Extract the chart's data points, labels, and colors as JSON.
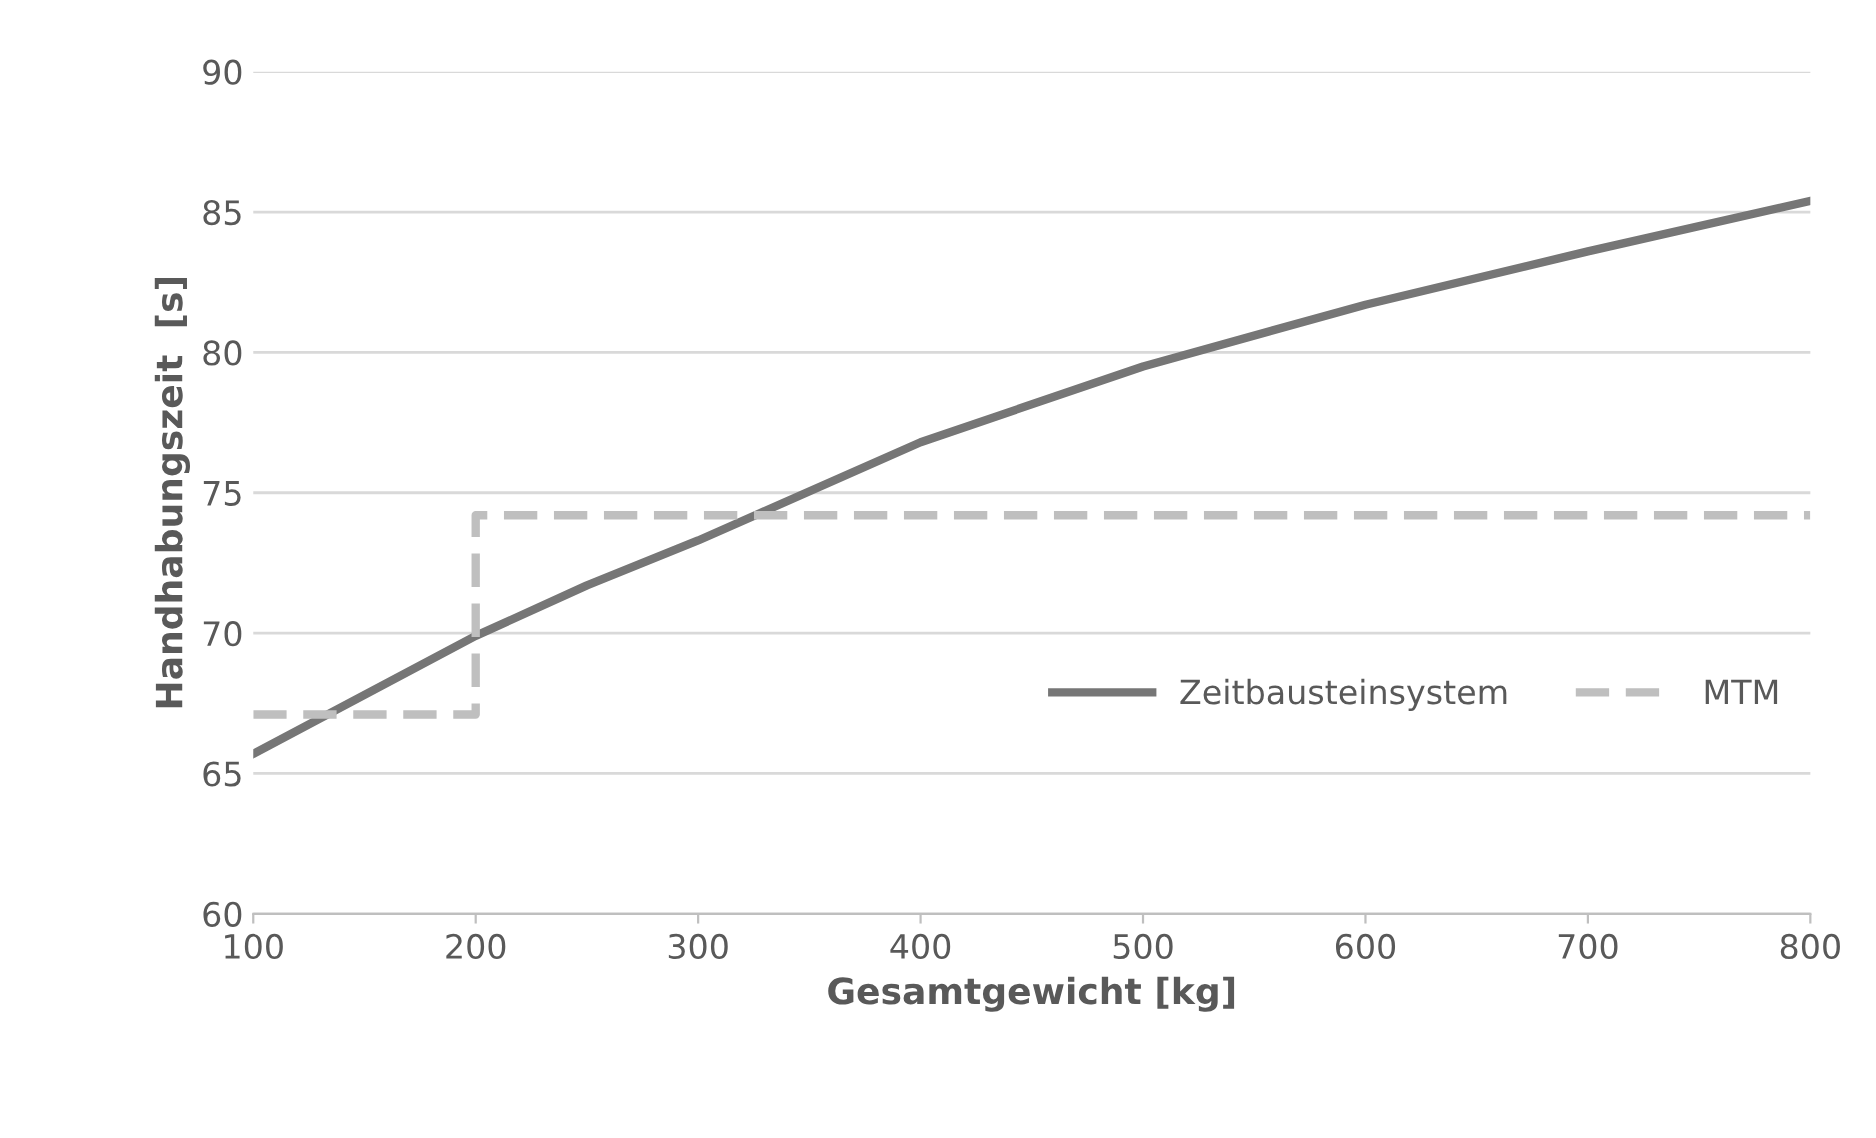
{
  "chart_data": {
    "type": "line",
    "xlabel": "Gesamtgewicht [kg]",
    "ylabel": "Handhabungszeit  [s]",
    "xlim": [
      100,
      800
    ],
    "xticks": [
      100,
      200,
      300,
      400,
      500,
      600,
      700,
      800
    ],
    "ylim": [
      60,
      90
    ],
    "yticks": [
      60,
      65,
      70,
      75,
      80,
      85,
      90
    ],
    "grid": "y",
    "legend": "right",
    "series": [
      {
        "name": "Zeitbausteinsystem",
        "color": "#767676",
        "line_style": "solid",
        "x": [
          100,
          200,
          250,
          300,
          400,
          500,
          600,
          700,
          800
        ],
        "values": [
          65.7,
          69.9,
          71.7,
          73.3,
          76.8,
          79.5,
          81.7,
          83.6,
          85.4
        ]
      },
      {
        "name": "MTM",
        "type": "step",
        "color": "#bfbfbf",
        "line_style": "dashed",
        "x": [
          100,
          200,
          800
        ],
        "values": [
          67.1,
          74.2,
          74.2
        ]
      }
    ]
  }
}
